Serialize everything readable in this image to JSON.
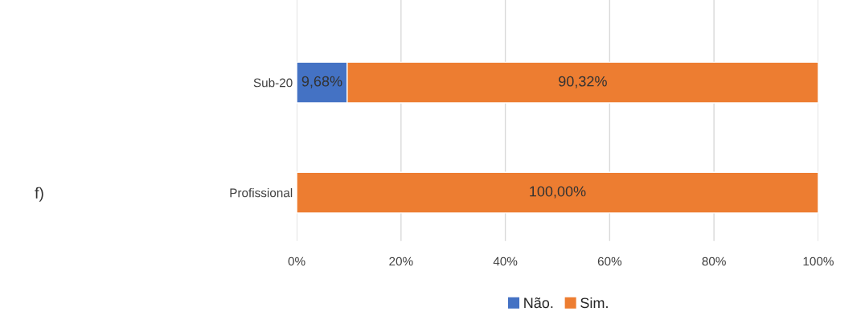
{
  "chart_data": {
    "type": "bar",
    "orientation": "horizontal",
    "stacked": true,
    "categories": [
      "Sub-20",
      "Profissional"
    ],
    "series": [
      {
        "name": "Não.",
        "color": "#4472c4",
        "values": [
          9.68,
          null
        ],
        "value_labels": [
          "9,68%",
          null
        ]
      },
      {
        "name": "Sim.",
        "color": "#ed7d31",
        "values": [
          90.32,
          100
        ],
        "value_labels": [
          "90,32%",
          "100,00%"
        ]
      }
    ],
    "xlim": [
      0,
      100
    ],
    "xticks": [
      {
        "value": 0,
        "label": "0%"
      },
      {
        "value": 20,
        "label": "20%"
      },
      {
        "value": 40,
        "label": "40%"
      },
      {
        "value": 60,
        "label": "60%"
      },
      {
        "value": 80,
        "label": "80%"
      },
      {
        "value": 100,
        "label": "100%"
      }
    ],
    "grid": "x",
    "legend": "bottom",
    "annotations": [
      "f)"
    ]
  }
}
